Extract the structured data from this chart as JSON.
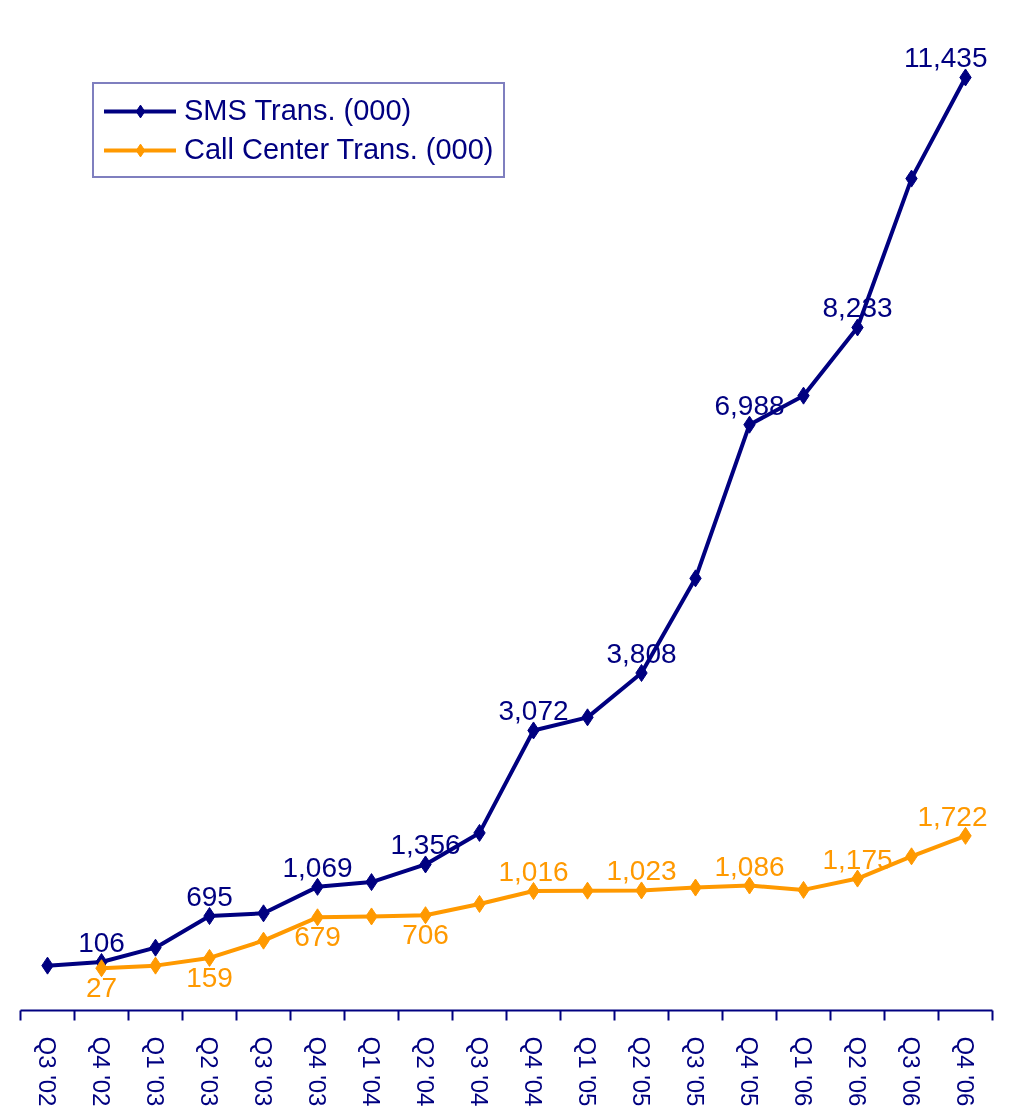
{
  "chart_data": {
    "type": "line",
    "categories": [
      "Q3 '02",
      "Q4 '02",
      "Q1 '03",
      "Q2 '03",
      "Q3 '03",
      "Q4 '03",
      "Q1 '04",
      "Q2 '04",
      "Q3 '04",
      "Q4 '04",
      "Q1 '05",
      "Q2 '05",
      "Q3 '05",
      "Q4 '05",
      "Q1 '06",
      "Q2 '06",
      "Q3 '06",
      "Q4 '06"
    ],
    "series": [
      {
        "name": "SMS Trans. (000)",
        "color": "#000080",
        "values": [
          60,
          106,
          290,
          695,
          730,
          1069,
          1130,
          1356,
          1760,
          3072,
          3240,
          3808,
          5020,
          6988,
          7360,
          8233,
          10140,
          11435
        ],
        "value_labels": [
          null,
          "106",
          null,
          "695",
          null,
          "1,069",
          null,
          "1,356",
          null,
          "3,072",
          null,
          "3,808",
          null,
          "6,988",
          null,
          "8,233",
          null,
          "11,435"
        ]
      },
      {
        "name": "Call Center Trans. (000)",
        "color": "#ff9900",
        "values": [
          null,
          27,
          60,
          159,
          380,
          679,
          690,
          706,
          850,
          1016,
          1020,
          1023,
          1060,
          1086,
          1030,
          1175,
          1460,
          1722
        ],
        "value_labels": [
          null,
          "27",
          null,
          "159",
          null,
          "679",
          null,
          "706",
          null,
          "1,016",
          null,
          "1,023",
          null,
          "1,086",
          null,
          "1,175",
          null,
          "1,722"
        ]
      }
    ],
    "legend": "top left",
    "marker": "diamond",
    "line_style": "solid"
  }
}
